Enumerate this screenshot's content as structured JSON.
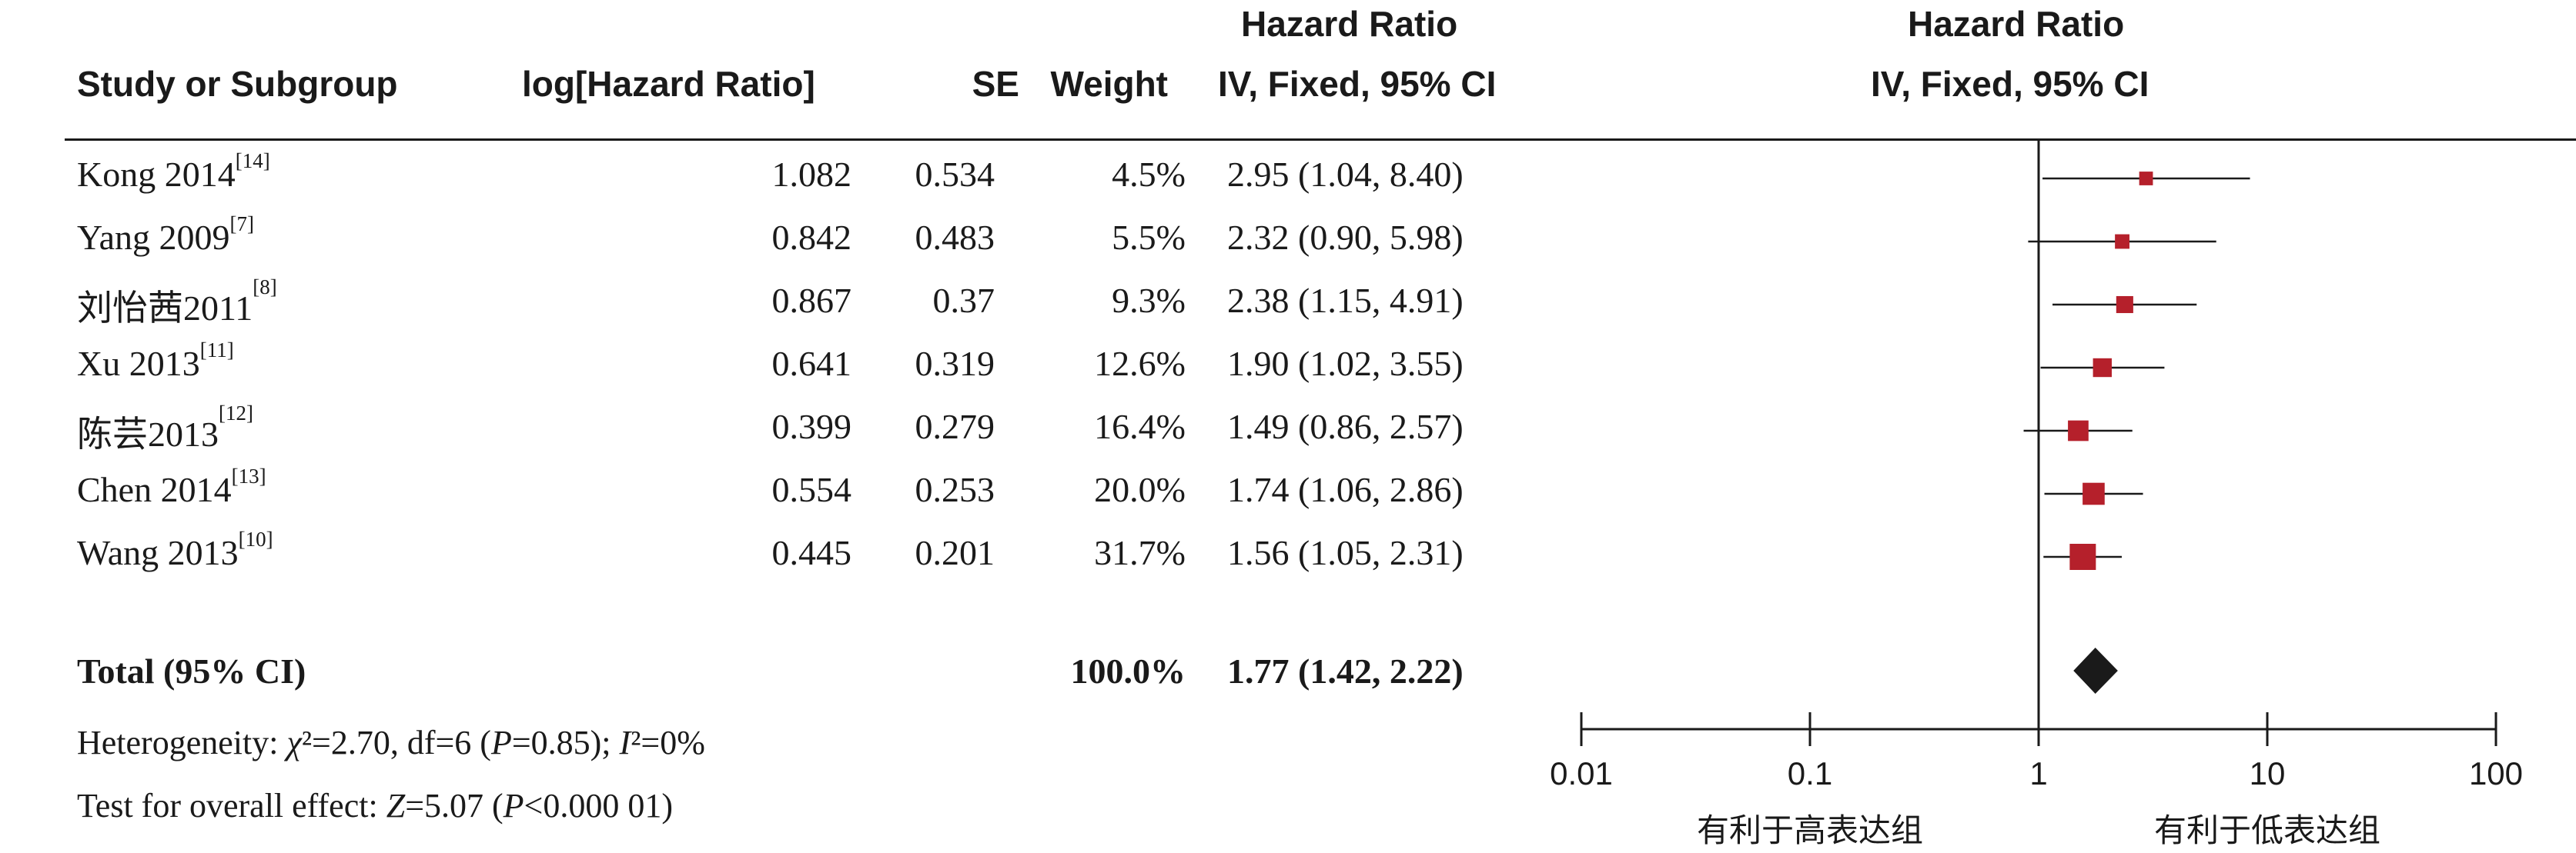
{
  "headers": {
    "study": "Study or Subgroup",
    "loghr": "log[Hazard Ratio]",
    "se": "SE",
    "weight": "Weight",
    "hr_title": "Hazard Ratio",
    "hr_method": "IV, Fixed, 95% CI",
    "plot_title": "Hazard Ratio",
    "plot_method": "IV, Fixed, 95% CI"
  },
  "chart_data": {
    "type": "forest",
    "scale": "log",
    "xlim": [
      0.01,
      100
    ],
    "null_value": 1,
    "ticks": [
      {
        "value": 0.01,
        "label": "0.01"
      },
      {
        "value": 0.1,
        "label": "0.1"
      },
      {
        "value": 1,
        "label": "1"
      },
      {
        "value": 10,
        "label": "10"
      },
      {
        "value": 100,
        "label": "100"
      }
    ],
    "favours_left": "有利于高表达组",
    "favours_right": "有利于低表达组",
    "studies": [
      {
        "study": "Kong 2014",
        "ref": "[14]",
        "loghr": "1.082",
        "se": "0.534",
        "weight": "4.5%",
        "weight_value": 4.5,
        "hr_text": "2.95 (1.04, 8.40)",
        "hr": 2.95,
        "lower": 1.04,
        "upper": 8.4
      },
      {
        "study": "Yang 2009",
        "ref": "[7]",
        "loghr": "0.842",
        "se": "0.483",
        "weight": "5.5%",
        "weight_value": 5.5,
        "hr_text": "2.32 (0.90, 5.98)",
        "hr": 2.32,
        "lower": 0.9,
        "upper": 5.98
      },
      {
        "study": "刘怡茜2011",
        "ref": "[8]",
        "loghr": "0.867",
        "se": "0.37",
        "weight": "9.3%",
        "weight_value": 9.3,
        "hr_text": "2.38 (1.15, 4.91)",
        "hr": 2.38,
        "lower": 1.15,
        "upper": 4.91
      },
      {
        "study": "Xu 2013",
        "ref": "[11]",
        "loghr": "0.641",
        "se": "0.319",
        "weight": "12.6%",
        "weight_value": 12.6,
        "hr_text": "1.90 (1.02, 3.55)",
        "hr": 1.9,
        "lower": 1.02,
        "upper": 3.55
      },
      {
        "study": "陈芸2013",
        "ref": "[12]",
        "loghr": "0.399",
        "se": "0.279",
        "weight": "16.4%",
        "weight_value": 16.4,
        "hr_text": "1.49 (0.86, 2.57)",
        "hr": 1.49,
        "lower": 0.86,
        "upper": 2.57
      },
      {
        "study": "Chen 2014",
        "ref": "[13]",
        "loghr": "0.554",
        "se": "0.253",
        "weight": "20.0%",
        "weight_value": 20.0,
        "hr_text": "1.74 (1.06, 2.86)",
        "hr": 1.74,
        "lower": 1.06,
        "upper": 2.86
      },
      {
        "study": "Wang 2013",
        "ref": "[10]",
        "loghr": "0.445",
        "se": "0.201",
        "weight": "31.7%",
        "weight_value": 31.7,
        "hr_text": "1.56 (1.05, 2.31)",
        "hr": 1.56,
        "lower": 1.05,
        "upper": 2.31
      }
    ],
    "total": {
      "label": "Total (95% CI)",
      "weight": "100.0%",
      "hr_text": "1.77 (1.42, 2.22)",
      "hr": 1.77,
      "lower": 1.42,
      "upper": 2.22
    },
    "colors": {
      "square": "#b5202b",
      "diamond": "#1a1a1a",
      "line": "#1a1a1a"
    }
  },
  "footer": {
    "heterogeneity": "Heterogeneity: χ²=2.70, df=6 (P=0.85); I²=0%",
    "overall_effect": "Test for overall effect: Z=5.07 (P<0.000 01)"
  }
}
